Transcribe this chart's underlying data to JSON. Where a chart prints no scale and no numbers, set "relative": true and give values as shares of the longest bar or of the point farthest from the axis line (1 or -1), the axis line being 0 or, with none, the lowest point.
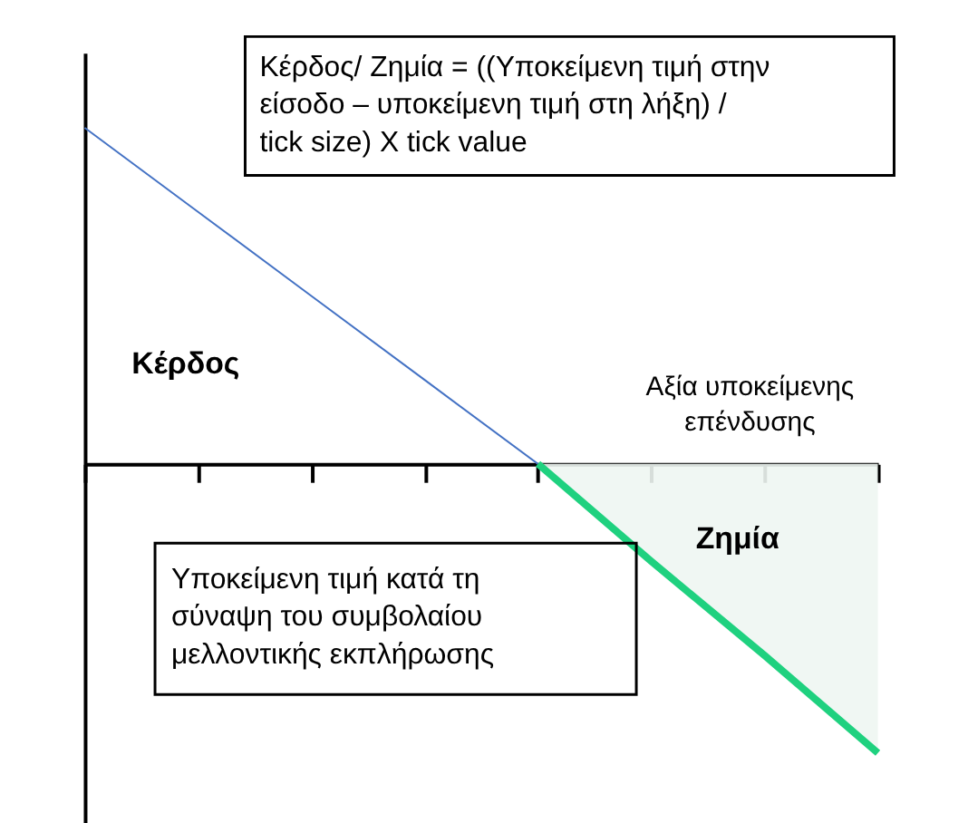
{
  "chart_data": {
    "type": "line",
    "relative": true,
    "xlabel": "Αξία υποκείμενης επένδυσης",
    "ylabel": "Κέρδος",
    "categories": [
      null,
      null,
      null,
      null,
      null,
      null,
      null,
      null
    ],
    "series": [
      {
        "type": "line",
        "color": "#4472c4",
        "values": [
          1,
          0.75,
          0.5,
          0.25,
          0,
          null,
          null,
          null
        ]
      },
      {
        "type": "area",
        "color": "#1fd17f",
        "values": [
          null,
          null,
          null,
          null,
          0,
          -0.29,
          -0.57,
          -0.86
        ]
      }
    ],
    "annotations": [
      "Κέρδος/ Ζημία = ((Υποκείμενη τιμή στην είσοδο – υποκείμενη τιμή στη λήξη) / tick size) X tick value",
      {
        "text": "Ζημία"
      },
      "Υποκείμενη τιμή κατά τη σύναψη του συμβολαίου μελλοντικής εκπλήρωσης"
    ]
  }
}
